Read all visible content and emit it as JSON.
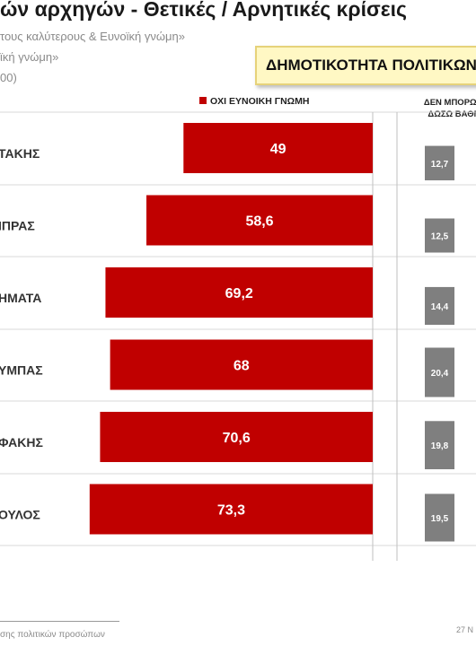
{
  "header": {
    "title": "ών αρχηγών  - Θετικές / Αρνητικές κρίσεις",
    "subtitle_1": "τους καλύτερους &  Ευνοϊκή γνώμη»",
    "subtitle_2": "ϊκή γνώμη»",
    "subtitle_3": "00)"
  },
  "badge": {
    "label": "ΔΗΜΟΤΙΚΟΤΗΤΑ ΠΟΛΙΤΙΚΩΝ"
  },
  "colors": {
    "bar": "#c00000",
    "gray_bar": "#7f7f7f",
    "badge_bg": "#fff8c4"
  },
  "chart_data": {
    "type": "bar",
    "orientation": "horizontal",
    "categories": [
      "ΤΑΚΗΣ",
      "ΙΠΡΑΣ",
      "ΗΜΑΤΑ",
      "ΥΜΠΑΣ",
      "ΦΑΚΗΣ",
      "ΟΥΛΟΣ"
    ],
    "series": [
      {
        "name": "ΟΧΙ ΕΥΝΟΙΚΗ ΓΝΩΜΗ",
        "values": [
          49,
          58.6,
          69.2,
          68,
          70.6,
          73.3
        ]
      },
      {
        "name": "ΔΕΝ ΜΠΟΡΩ ΝΑ ΔΩΣΩ ΒΑΘΜΟ",
        "values": [
          12.7,
          12.5,
          14.4,
          20.4,
          19.8,
          19.5
        ]
      }
    ],
    "value_labels": [
      "49",
      "58,6",
      "69,2",
      "68",
      "70,6",
      "73,3"
    ],
    "secondary_labels": [
      "12,7",
      "12,5",
      "14,4",
      "20,4",
      "19,8",
      "19,5"
    ],
    "legend": {
      "red": "ΟΧΙ ΕΥΝΟΙΚΗ ΓΝΩΜΗ",
      "gray_line1": "ΔΕΝ ΜΠΟΡΩ Ν",
      "gray_line2": "ΔΩΣΩ ΒΑΘΜ"
    }
  },
  "footer": {
    "footnote": "σης πολιτικών προσώπων",
    "date": "27 Ν"
  }
}
